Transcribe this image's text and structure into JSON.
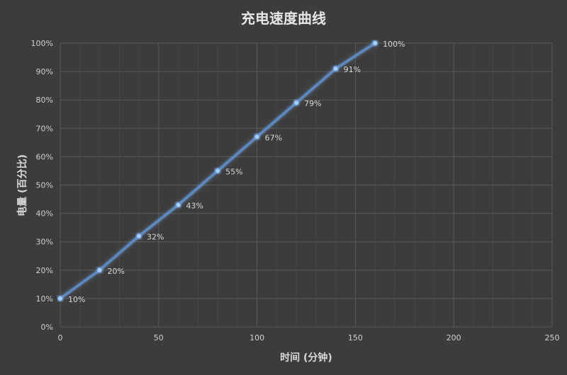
{
  "chart_data": {
    "type": "line",
    "title": "充电速度曲线",
    "xlabel": "时间 (分钟)",
    "ylabel": "电量 (百分比)",
    "xlim": [
      0,
      250
    ],
    "ylim": [
      0,
      100
    ],
    "x_ticks": [
      0,
      50,
      100,
      150,
      200,
      250
    ],
    "y_ticks": [
      "0%",
      "10%",
      "20%",
      "30%",
      "40%",
      "50%",
      "60%",
      "70%",
      "80%",
      "90%",
      "100%"
    ],
    "grid": true,
    "series": [
      {
        "x": [
          0,
          20,
          40,
          60,
          80,
          100,
          120,
          140,
          160
        ],
        "y": [
          10,
          20,
          32,
          43,
          55,
          67,
          79,
          91,
          100
        ],
        "labels": [
          "10%",
          "20%",
          "32%",
          "43%",
          "55%",
          "67%",
          "79%",
          "91%",
          "100%"
        ],
        "color": "#5b8fd4"
      }
    ],
    "colors": {
      "background": "#3c3c3c",
      "grid_major": "#5a5a5a",
      "grid_minor": "#474747",
      "line": "#5b8fd4",
      "glow": "#7fb2f0"
    }
  }
}
